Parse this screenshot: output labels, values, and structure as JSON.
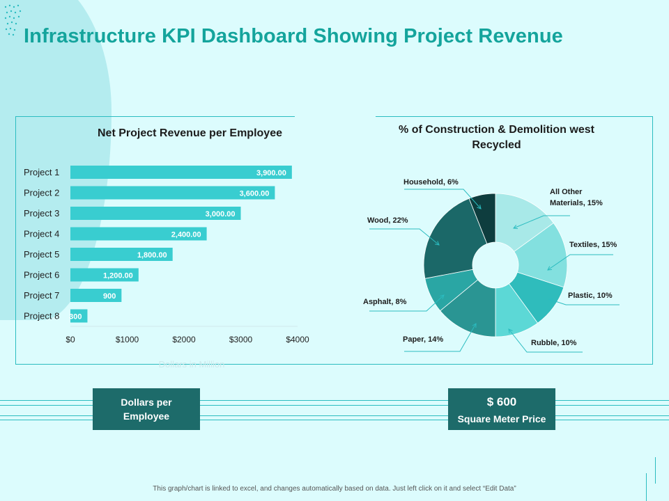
{
  "title": "Infrastructure KPI Dashboard Showing Project Revenue",
  "chart_data": [
    {
      "type": "bar",
      "orientation": "horizontal",
      "title": "Net Project Revenue per Employee",
      "categories": [
        "Project 1",
        "Project 2",
        "Project 3",
        "Project 4",
        "Project 5",
        "Project 6",
        "Project 7",
        "Project 8"
      ],
      "values": [
        3900,
        3600,
        3000,
        2400,
        1800,
        1200,
        900,
        300
      ],
      "value_labels": [
        "3,900.00",
        "3,600.00",
        "3,000.00",
        "2,400.00",
        "1,800.00",
        "1,200.00",
        "900",
        "300"
      ],
      "x_ticks": [
        "$0",
        "$1000",
        "$2000",
        "$3000",
        "$4000"
      ],
      "xlim": [
        0,
        4000
      ],
      "xlabel": "Dollars in Million",
      "color": "#39cdd0"
    },
    {
      "type": "pie",
      "donut": true,
      "title_lines": [
        "% of Construction & Demolition west",
        "Recycled"
      ],
      "slices": [
        {
          "label": "All Other Materials, 15%",
          "value": 15,
          "color": "#a8e9e8"
        },
        {
          "label": "Textiles, 15%",
          "value": 15,
          "color": "#83e0df"
        },
        {
          "label": "Plastic, 10%",
          "value": 10,
          "color": "#2fbcbc"
        },
        {
          "label": "Rubble, 10%",
          "value": 10,
          "color": "#5cd8d6"
        },
        {
          "label": "Paper, 14%",
          "value": 14,
          "color": "#2a9593"
        },
        {
          "label": "Asphalt, 8%",
          "value": 8,
          "color": "#2aa6a4"
        },
        {
          "label": "Wood, 22%",
          "value": 22,
          "color": "#1b6868"
        },
        {
          "label": "Household, 6%",
          "value": 6,
          "color": "#0e3d3e"
        }
      ]
    }
  ],
  "kpi": {
    "left_label": "Dollars per Employee",
    "right_value": "$ 600",
    "right_label": "Square Meter Price"
  },
  "colors": {
    "accent": "#14a49c",
    "dark_box": "#1d6b6a",
    "bar": "#39cdd0",
    "background": "#dcfcfd"
  },
  "footer": "This graph/chart is linked to excel, and changes automatically based on data. Just left click on it and select “Edit Data”"
}
